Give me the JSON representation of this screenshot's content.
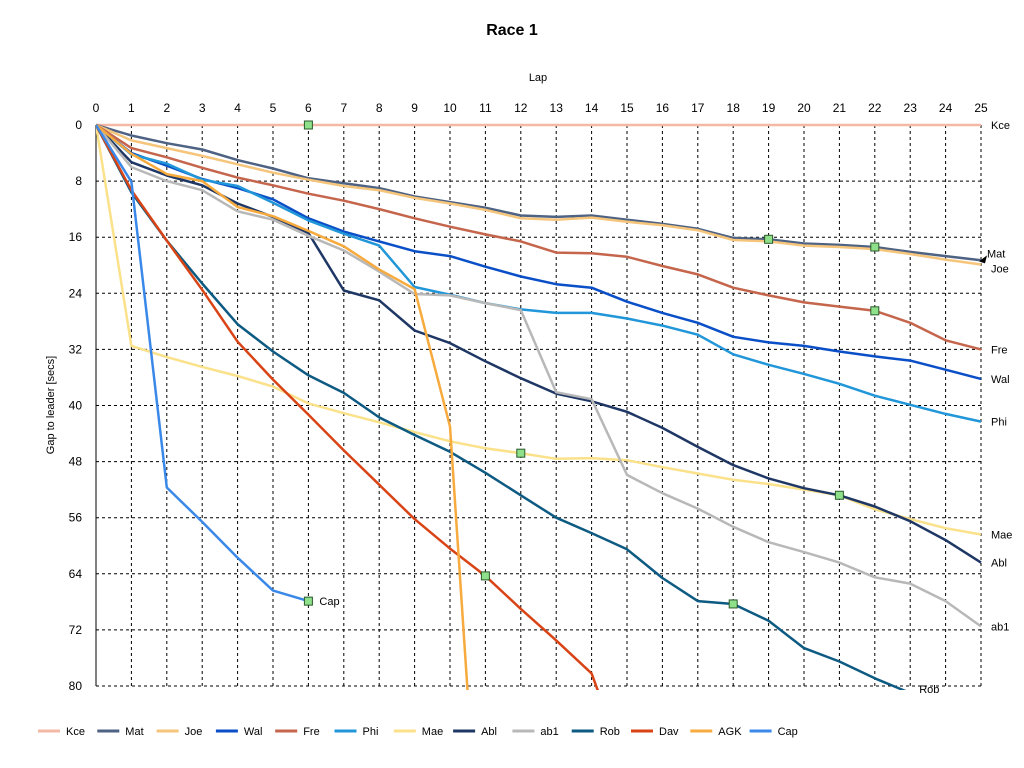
{
  "chart_data": {
    "type": "line",
    "title": "Race 1",
    "xlabel": "Lap",
    "ylabel": "Gap to leader [secs]",
    "x_ticks": [
      0,
      1,
      2,
      3,
      4,
      5,
      6,
      7,
      8,
      9,
      10,
      11,
      12,
      13,
      14,
      15,
      16,
      17,
      18,
      19,
      20,
      21,
      22,
      23,
      24,
      25
    ],
    "y_ticks": [
      0,
      8,
      16,
      24,
      32,
      40,
      48,
      56,
      64,
      72,
      80
    ],
    "xlim": [
      0,
      25
    ],
    "ylim": [
      0,
      80
    ],
    "y_inverted": true,
    "x_axis_position": "top",
    "grid": true,
    "legend_position": "bottom",
    "series": [
      {
        "name": "Kce",
        "color": "#f4b8a6",
        "end_label": "Kce",
        "points": [
          [
            0,
            0
          ],
          [
            25,
            0
          ]
        ],
        "markers": [
          [
            6,
            0
          ]
        ]
      },
      {
        "name": "Mat",
        "color": "#4e6283",
        "end_label": "Mat",
        "points": [
          [
            0,
            0
          ],
          [
            1,
            1.5
          ],
          [
            2,
            2.6
          ],
          [
            3,
            3.5
          ],
          [
            4,
            5
          ],
          [
            5,
            6.2
          ],
          [
            6,
            7.6
          ],
          [
            7,
            8.3
          ],
          [
            8,
            9
          ],
          [
            9,
            10.2
          ],
          [
            10,
            11
          ],
          [
            11,
            11.8
          ],
          [
            12,
            12.9
          ],
          [
            13,
            13.1
          ],
          [
            14,
            12.9
          ],
          [
            15,
            13.5
          ],
          [
            16,
            14.1
          ],
          [
            17,
            14.8
          ],
          [
            18,
            16.1
          ],
          [
            19,
            16.3
          ],
          [
            20,
            16.9
          ],
          [
            21,
            17.1
          ],
          [
            22,
            17.4
          ],
          [
            23,
            18.1
          ],
          [
            24,
            18.7
          ],
          [
            25,
            19.3
          ]
        ],
        "markers": [
          [
            19,
            16.3
          ],
          [
            22,
            17.4
          ]
        ]
      },
      {
        "name": "Joe",
        "color": "#f6c57c",
        "end_label": "Joe",
        "points": [
          [
            0,
            0
          ],
          [
            1,
            2.2
          ],
          [
            2,
            3.3
          ],
          [
            3,
            4.4
          ],
          [
            4,
            5.6
          ],
          [
            5,
            6.8
          ],
          [
            6,
            7.8
          ],
          [
            7,
            8.7
          ],
          [
            8,
            9.3
          ],
          [
            9,
            10.4
          ],
          [
            10,
            11.2
          ],
          [
            11,
            12.1
          ],
          [
            12,
            13.3
          ],
          [
            13,
            13.5
          ],
          [
            14,
            13.2
          ],
          [
            15,
            13.8
          ],
          [
            16,
            14.3
          ],
          [
            17,
            15.0
          ],
          [
            18,
            16.4
          ],
          [
            19,
            16.6
          ],
          [
            20,
            17.2
          ],
          [
            21,
            17.4
          ],
          [
            22,
            17.7
          ],
          [
            23,
            18.4
          ],
          [
            24,
            19.2
          ],
          [
            25,
            19.9
          ]
        ]
      },
      {
        "name": "Wal",
        "color": "#0a4fc7",
        "end_label": "Wal",
        "points": [
          [
            0,
            0
          ],
          [
            1,
            4
          ],
          [
            2,
            5.8
          ],
          [
            3,
            7.7
          ],
          [
            4,
            9
          ],
          [
            5,
            10.6
          ],
          [
            6,
            13.3
          ],
          [
            7,
            15.2
          ],
          [
            8,
            16.6
          ],
          [
            9,
            18
          ],
          [
            10,
            18.7
          ],
          [
            11,
            20.2
          ],
          [
            12,
            21.6
          ],
          [
            13,
            22.7
          ],
          [
            14,
            23.2
          ],
          [
            15,
            25.2
          ],
          [
            16,
            26.8
          ],
          [
            17,
            28.2
          ],
          [
            18,
            30.2
          ],
          [
            19,
            31
          ],
          [
            20,
            31.5
          ],
          [
            21,
            32.3
          ],
          [
            22,
            33
          ],
          [
            23,
            33.6
          ],
          [
            24,
            34.9
          ],
          [
            25,
            36.2
          ]
        ]
      },
      {
        "name": "Fre",
        "color": "#c4654c",
        "end_label": "Fre",
        "points": [
          [
            0,
            0
          ],
          [
            1,
            3.3
          ],
          [
            2,
            4.6
          ],
          [
            3,
            6.1
          ],
          [
            4,
            7.5
          ],
          [
            5,
            8.6
          ],
          [
            6,
            9.8
          ],
          [
            7,
            10.8
          ],
          [
            8,
            12
          ],
          [
            9,
            13.3
          ],
          [
            10,
            14.5
          ],
          [
            11,
            15.6
          ],
          [
            12,
            16.6
          ],
          [
            13,
            18.2
          ],
          [
            14,
            18.3
          ],
          [
            15,
            18.8
          ],
          [
            16,
            20.1
          ],
          [
            17,
            21.3
          ],
          [
            18,
            23.2
          ],
          [
            19,
            24.3
          ],
          [
            20,
            25.3
          ],
          [
            21,
            25.9
          ],
          [
            22,
            26.5
          ],
          [
            23,
            28.2
          ],
          [
            24,
            30.7
          ],
          [
            25,
            32
          ]
        ],
        "markers": [
          [
            22,
            26.5
          ]
        ]
      },
      {
        "name": "Phi",
        "color": "#2196d8",
        "end_label": "Phi",
        "points": [
          [
            0,
            0
          ],
          [
            1,
            4.2
          ],
          [
            2,
            5.5
          ],
          [
            3,
            7.8
          ],
          [
            4,
            8.7
          ],
          [
            5,
            11.1
          ],
          [
            6,
            13.6
          ],
          [
            7,
            15.5
          ],
          [
            8,
            17.2
          ],
          [
            9,
            23.1
          ],
          [
            10,
            24.2
          ],
          [
            11,
            25.4
          ],
          [
            12,
            26.3
          ],
          [
            13,
            26.8
          ],
          [
            14,
            26.8
          ],
          [
            15,
            27.6
          ],
          [
            16,
            28.6
          ],
          [
            17,
            29.9
          ],
          [
            18,
            32.7
          ],
          [
            19,
            34.2
          ],
          [
            20,
            35.5
          ],
          [
            21,
            36.9
          ],
          [
            22,
            38.6
          ],
          [
            23,
            39.9
          ],
          [
            24,
            41.2
          ],
          [
            25,
            42.3
          ]
        ]
      },
      {
        "name": "Mae",
        "color": "#fbe18a",
        "end_label": "Mae",
        "points": [
          [
            0,
            0
          ],
          [
            1,
            31.5
          ],
          [
            2,
            33.1
          ],
          [
            3,
            34.5
          ],
          [
            4,
            35.8
          ],
          [
            5,
            37.3
          ],
          [
            6,
            39.7
          ],
          [
            7,
            41.1
          ],
          [
            8,
            42.4
          ],
          [
            9,
            43.8
          ],
          [
            10,
            45.1
          ],
          [
            11,
            46.1
          ],
          [
            12,
            46.8
          ],
          [
            13,
            47.6
          ],
          [
            14,
            47.5
          ],
          [
            15,
            47.8
          ],
          [
            16,
            48.8
          ],
          [
            17,
            49.7
          ],
          [
            18,
            50.6
          ],
          [
            19,
            51.2
          ],
          [
            20,
            52
          ],
          [
            21,
            52.8
          ],
          [
            22,
            54.8
          ],
          [
            23,
            56.2
          ],
          [
            24,
            57.5
          ],
          [
            25,
            58.4
          ]
        ],
        "markers": [
          [
            12,
            46.8
          ]
        ]
      },
      {
        "name": "Abl",
        "color": "#1f3764",
        "end_label": "Abl",
        "points": [
          [
            0,
            0
          ],
          [
            1,
            5.3
          ],
          [
            2,
            7.2
          ],
          [
            3,
            8.6
          ],
          [
            4,
            11.2
          ],
          [
            5,
            13.1
          ],
          [
            6,
            15.4
          ],
          [
            7,
            23.6
          ],
          [
            8,
            25
          ],
          [
            9,
            29.3
          ],
          [
            10,
            31.1
          ],
          [
            11,
            33.7
          ],
          [
            12,
            36.1
          ],
          [
            13,
            38.3
          ],
          [
            14,
            39.4
          ],
          [
            15,
            40.9
          ],
          [
            16,
            43.2
          ],
          [
            17,
            45.9
          ],
          [
            18,
            48.5
          ],
          [
            19,
            50.4
          ],
          [
            20,
            51.8
          ],
          [
            21,
            52.8
          ],
          [
            22,
            54.4
          ],
          [
            23,
            56.5
          ],
          [
            24,
            59.2
          ],
          [
            25,
            62.4
          ]
        ],
        "markers": [
          [
            21,
            52.8
          ]
        ]
      },
      {
        "name": "ab1",
        "color": "#b8b8b8",
        "end_label": "ab1",
        "points": [
          [
            0,
            0
          ],
          [
            1,
            6
          ],
          [
            2,
            8
          ],
          [
            3,
            9.3
          ],
          [
            4,
            12.3
          ],
          [
            5,
            13.5
          ],
          [
            6,
            15.8
          ],
          [
            7,
            17.9
          ],
          [
            8,
            20.9
          ],
          [
            9,
            24.1
          ],
          [
            10,
            24.3
          ],
          [
            11,
            25.4
          ],
          [
            12,
            26.4
          ],
          [
            13,
            38.1
          ],
          [
            14,
            39.1
          ],
          [
            15,
            49.9
          ],
          [
            16,
            52.5
          ],
          [
            17,
            54.7
          ],
          [
            18,
            57.3
          ],
          [
            19,
            59.5
          ],
          [
            20,
            60.9
          ],
          [
            21,
            62.4
          ],
          [
            22,
            64.5
          ],
          [
            23,
            65.4
          ],
          [
            24,
            67.9
          ],
          [
            25,
            71.5
          ]
        ]
      },
      {
        "name": "Rob",
        "color": "#0d5a82",
        "end_label": "Rob",
        "points": [
          [
            0,
            0
          ],
          [
            1,
            9.6
          ],
          [
            2,
            16.5
          ],
          [
            3,
            22.6
          ],
          [
            4,
            28.4
          ],
          [
            5,
            32.3
          ],
          [
            6,
            35.7
          ],
          [
            7,
            38.2
          ],
          [
            8,
            41.7
          ],
          [
            9,
            44.2
          ],
          [
            10,
            46.6
          ],
          [
            11,
            49.6
          ],
          [
            12,
            52.8
          ],
          [
            13,
            56
          ],
          [
            14,
            58.2
          ],
          [
            15,
            60.5
          ],
          [
            16,
            64.6
          ],
          [
            17,
            67.9
          ],
          [
            18,
            68.3
          ],
          [
            19,
            70.7
          ],
          [
            20,
            74.6
          ],
          [
            21,
            76.5
          ],
          [
            22,
            78.9
          ],
          [
            23,
            81
          ]
        ],
        "markers": [
          [
            18,
            68.3
          ]
        ]
      },
      {
        "name": "Dav",
        "color": "#d94416",
        "end_label": "",
        "points": [
          [
            0,
            0
          ],
          [
            1,
            9.3
          ],
          [
            2,
            16.5
          ],
          [
            3,
            23.5
          ],
          [
            4,
            30.9
          ],
          [
            5,
            36.3
          ],
          [
            6,
            41.3
          ],
          [
            7,
            46.4
          ],
          [
            8,
            51.3
          ],
          [
            9,
            56.2
          ],
          [
            10,
            60.4
          ],
          [
            11,
            64.3
          ],
          [
            12,
            69
          ],
          [
            13,
            73.5
          ],
          [
            14,
            78.2
          ],
          [
            14.2,
            81
          ]
        ],
        "markers": [
          [
            11,
            64.3
          ]
        ]
      },
      {
        "name": "AGK",
        "color": "#f7aa3d",
        "end_label": "",
        "points": [
          [
            0,
            0
          ],
          [
            1,
            4.1
          ],
          [
            2,
            7
          ],
          [
            3,
            8
          ],
          [
            4,
            11.7
          ],
          [
            5,
            13
          ],
          [
            6,
            15.1
          ],
          [
            7,
            17.3
          ],
          [
            8,
            20.6
          ],
          [
            9,
            23.4
          ],
          [
            10,
            43
          ],
          [
            10.5,
            81
          ]
        ]
      },
      {
        "name": "Cap",
        "color": "#3a88e8",
        "end_label": "Cap",
        "points": [
          [
            0,
            0
          ],
          [
            1,
            8.1
          ],
          [
            2,
            51.7
          ],
          [
            3,
            56.6
          ],
          [
            4,
            61.7
          ],
          [
            5,
            66.4
          ],
          [
            6,
            67.9
          ]
        ],
        "markers": [
          [
            6,
            67.9
          ]
        ]
      }
    ]
  }
}
